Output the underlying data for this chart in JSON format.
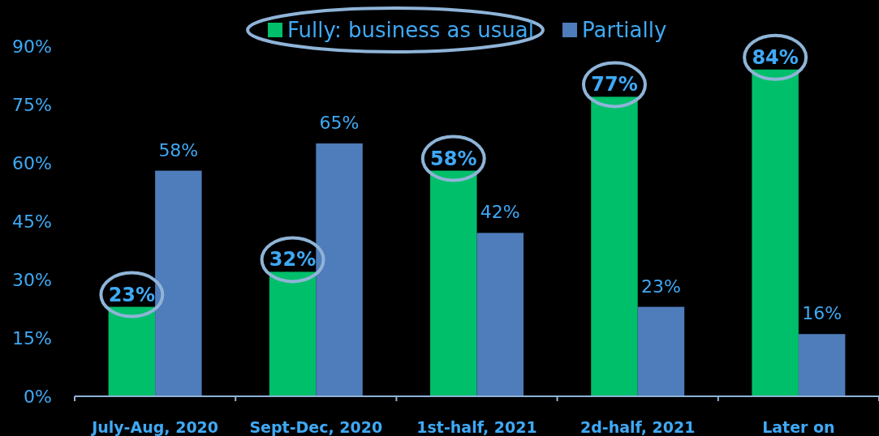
{
  "chart_data": {
    "type": "bar",
    "categories": [
      "July-Aug, 2020",
      "Sept-Dec, 2020",
      "1st-half, 2021",
      "2d-half, 2021",
      "Later on"
    ],
    "series": [
      {
        "name": "Fully: business as usual",
        "color": "#00bf6a",
        "values": [
          23,
          32,
          58,
          77,
          84
        ],
        "value_labels": [
          "23%",
          "32%",
          "58%",
          "77%",
          "84%"
        ]
      },
      {
        "name": "Partially",
        "color": "#4f7cba",
        "values": [
          58,
          65,
          42,
          23,
          16
        ],
        "value_labels": [
          "58%",
          "65%",
          "42%",
          "23%",
          "16%"
        ]
      }
    ],
    "ylim": [
      0,
      90
    ],
    "yticks": [
      {
        "value": 0,
        "label": "0%"
      },
      {
        "value": 15,
        "label": "15%"
      },
      {
        "value": 30,
        "label": "30%"
      },
      {
        "value": 45,
        "label": "45%"
      },
      {
        "value": 60,
        "label": "60%"
      },
      {
        "value": 75,
        "label": "75%"
      },
      {
        "value": 90,
        "label": "90%"
      }
    ],
    "legend": "top",
    "grid": false
  }
}
